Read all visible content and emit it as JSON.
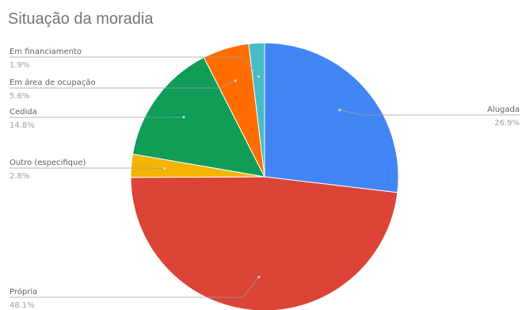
{
  "chart_data": {
    "type": "pie",
    "title": "Situação da moradia",
    "start_angle_deg": 0,
    "direction": "clockwise",
    "slices": [
      {
        "label": "Alugada",
        "value": 26.9,
        "display": "26.9%",
        "color": "#4285F4"
      },
      {
        "label": "Própria",
        "value": 48.1,
        "display": "48.1%",
        "color": "#DB4437"
      },
      {
        "label": "Outro (especifique)",
        "value": 2.8,
        "display": "2.8%",
        "color": "#F4B400"
      },
      {
        "label": "Cedida",
        "value": 14.8,
        "display": "14.8%",
        "color": "#0F9D58"
      },
      {
        "label": "Em área de ocupação",
        "value": 5.6,
        "display": "5.6%",
        "color": "#FF6D00"
      },
      {
        "label": "Em financiamento",
        "value": 1.9,
        "display": "1.9%",
        "color": "#46BDC6"
      }
    ]
  }
}
